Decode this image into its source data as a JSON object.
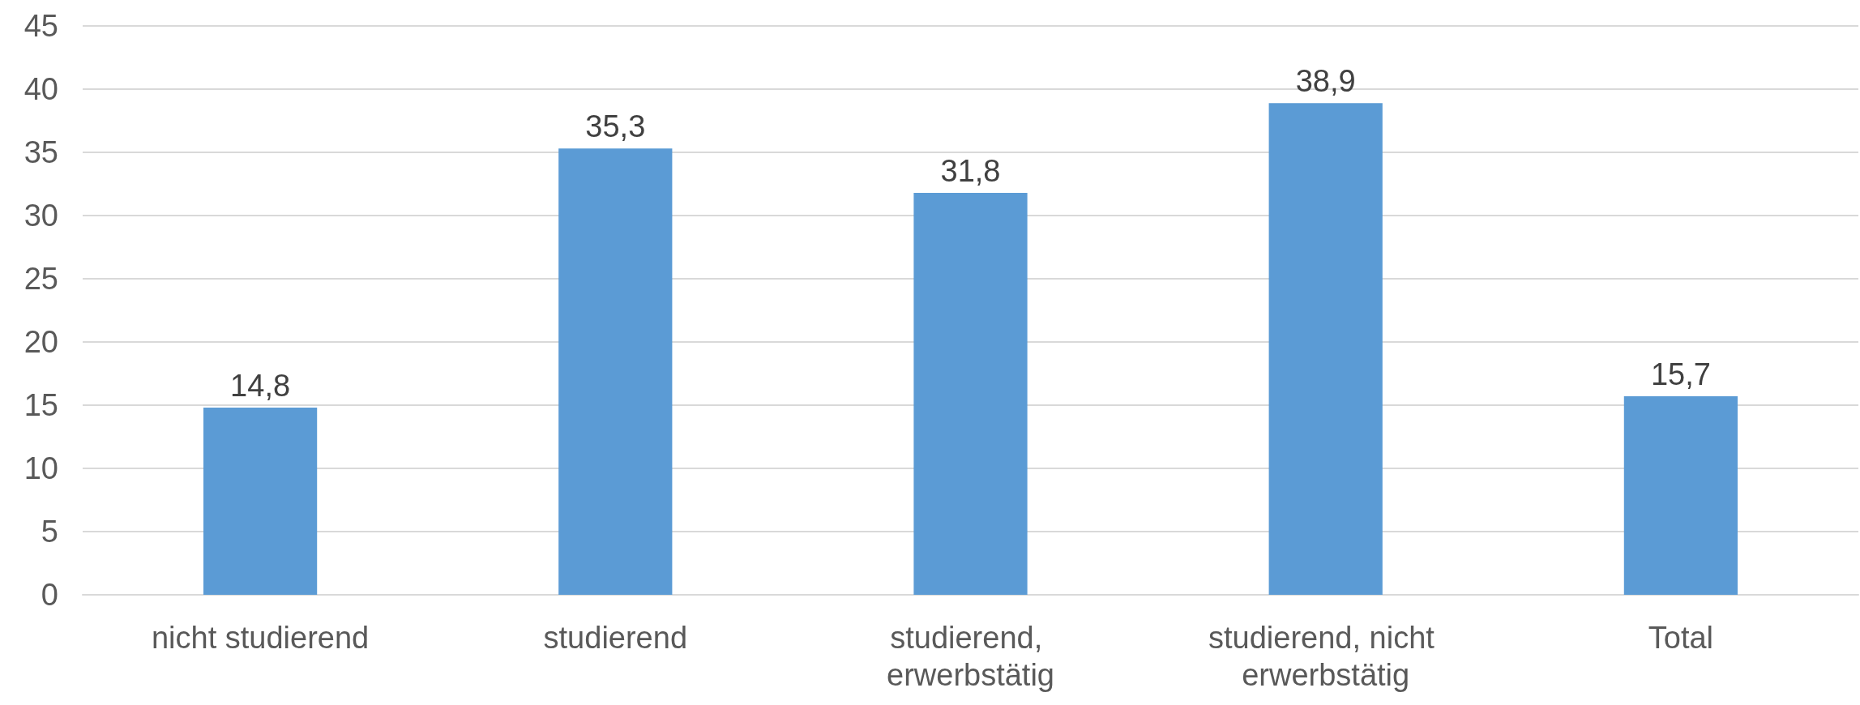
{
  "chart_data": {
    "type": "bar",
    "categories": [
      "nicht studierend",
      "studierend",
      "studierend, erwerbstätig",
      "studierend, nicht erwerbstätig",
      "Total"
    ],
    "values": [
      14.8,
      35.3,
      31.8,
      38.9,
      15.7
    ],
    "value_labels": [
      "14,8",
      "35,3",
      "31,8",
      "38,9",
      "15,7"
    ],
    "color": "#5b9bd5",
    "ylim": [
      0,
      45
    ],
    "yticks": [
      0,
      5,
      10,
      15,
      20,
      25,
      30,
      35,
      40,
      45
    ],
    "grid": "y"
  }
}
